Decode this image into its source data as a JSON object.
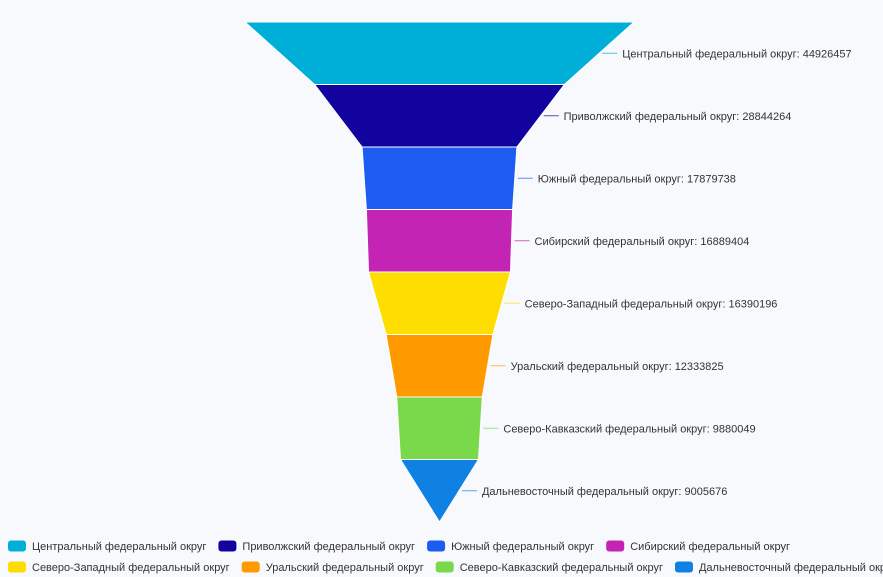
{
  "chart_data": {
    "type": "funnel",
    "sort": "descending",
    "legend_position": "bottom",
    "categories": [
      "Центральный федеральный округ",
      "Приволжский федеральный округ",
      "Южный федеральный округ",
      "Сибирский федеральный округ",
      "Северо-Западный федеральный округ",
      "Уральский федеральный округ",
      "Северо-Кавказский федеральный округ",
      "Дальневосточный федеральный округ"
    ],
    "values": [
      44926457,
      28844264,
      17879738,
      16889404,
      16390196,
      12333825,
      9880049,
      9005676
    ],
    "colors": [
      "#00afd7",
      "#12029e",
      "#1d5cf0",
      "#c424b4",
      "#fedd00",
      "#fe9a00",
      "#79d94a",
      "#0f81e3"
    ]
  }
}
